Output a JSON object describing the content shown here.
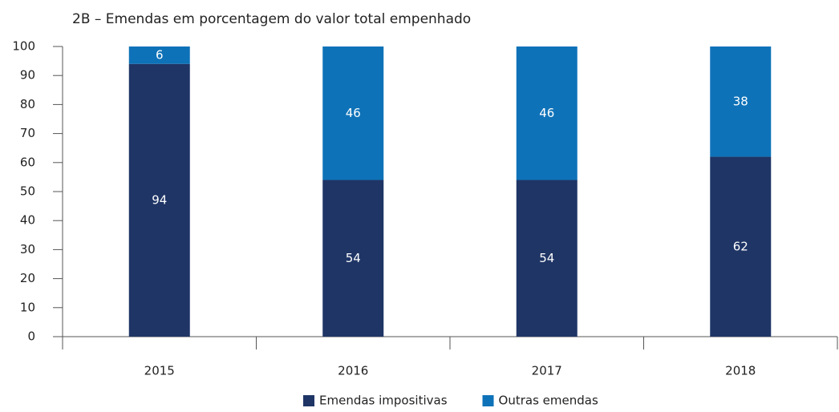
{
  "chart_data": {
    "type": "stacked_bar",
    "title": "2B – Emendas em porcentagem do valor total empenhado",
    "categories": [
      "2015",
      "2016",
      "2017",
      "2018"
    ],
    "series": [
      {
        "name": "Emendas impositivas",
        "color": "#1f3566",
        "values": [
          94,
          54,
          54,
          62
        ]
      },
      {
        "name": "Outras emendas",
        "color": "#0e72b8",
        "values": [
          6,
          46,
          46,
          38
        ]
      }
    ],
    "ylim": [
      0,
      100
    ],
    "yticks": [
      0,
      10,
      20,
      30,
      40,
      50,
      60,
      70,
      80,
      90,
      100
    ],
    "legend": "bottom"
  }
}
